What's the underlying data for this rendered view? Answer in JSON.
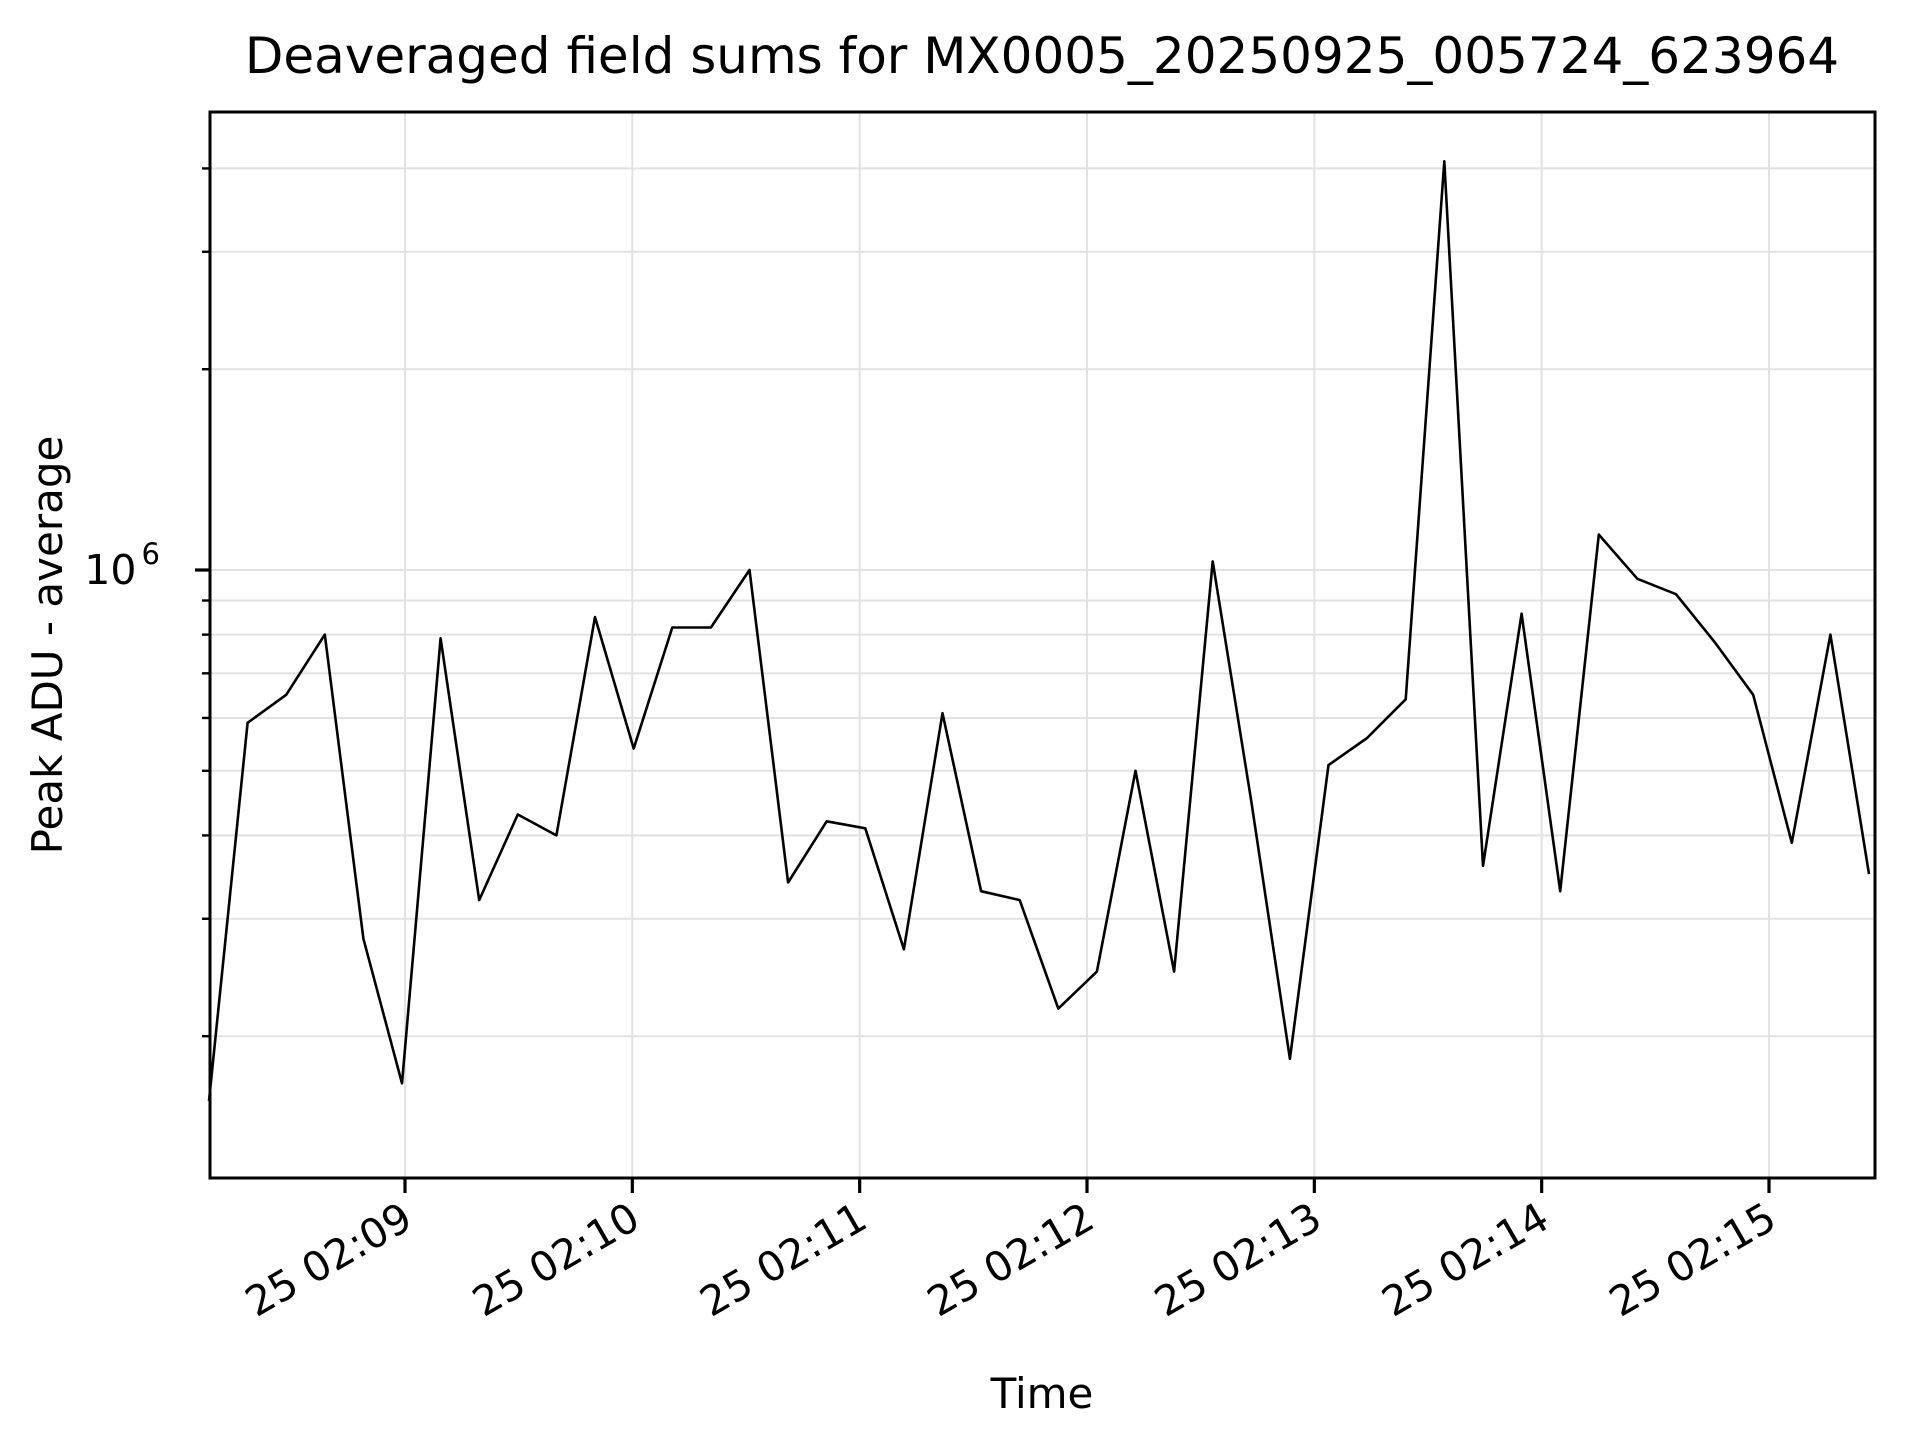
{
  "figure": {
    "background": "#ffffff",
    "text_color": "#000000"
  },
  "chart_data": {
    "type": "line",
    "title": "Deaveraged field sums for MX0005_20250925_005724_623964",
    "xlabel": "Time",
    "ylabel": "Peak ADU - average",
    "yscale": "log",
    "ylim": [
      123000,
      4870000
    ],
    "xlim": [
      "25 02:08:08",
      "25 02:15:29"
    ],
    "grid": true,
    "legend": false,
    "line_color": "#000000",
    "grid_color": "#e2e2e2",
    "spine_color": "#000000",
    "x_tick_labels": [
      "25 02:09",
      "25 02:10",
      "25 02:11",
      "25 02:12",
      "25 02:13",
      "25 02:14",
      "25 02:15"
    ],
    "y_tick_label": {
      "base": "10",
      "exponent": "6",
      "value": 1000000
    },
    "y_gridline_values": [
      200000,
      300000,
      400000,
      500000,
      600000,
      700000,
      800000,
      900000,
      1000000,
      2000000,
      3000000,
      4000000
    ],
    "series": [
      {
        "name": "Peak ADU - average",
        "x": [
          "02:08:08",
          "02:08:18",
          "02:08:28",
          "02:08:39",
          "02:08:49",
          "02:08:59",
          "02:09:09",
          "02:09:19",
          "02:09:30",
          "02:09:40",
          "02:09:50",
          "02:10:00",
          "02:10:10",
          "02:10:21",
          "02:10:31",
          "02:10:41",
          "02:10:51",
          "02:11:01",
          "02:11:12",
          "02:11:22",
          "02:11:32",
          "02:11:42",
          "02:11:52",
          "02:12:03",
          "02:12:13",
          "02:12:23",
          "02:12:33",
          "02:12:43",
          "02:12:54",
          "02:13:04",
          "02:13:14",
          "02:13:24",
          "02:13:34",
          "02:13:45",
          "02:13:55",
          "02:14:05",
          "02:14:15",
          "02:14:25",
          "02:14:36",
          "02:14:46",
          "02:14:56",
          "02:15:06",
          "02:15:16",
          "02:15:27"
        ],
        "values": [
          160000,
          590000,
          650000,
          800000,
          280000,
          170000,
          790000,
          320000,
          430000,
          400000,
          850000,
          540000,
          820000,
          820000,
          1000000,
          340000,
          420000,
          410000,
          270000,
          610000,
          330000,
          320000,
          220000,
          250000,
          500000,
          250000,
          1030000,
          450000,
          185000,
          510000,
          560000,
          640000,
          4100000,
          360000,
          860000,
          330000,
          1130000,
          970000,
          920000,
          780000,
          650000,
          390000,
          800000,
          350000
        ]
      }
    ]
  }
}
